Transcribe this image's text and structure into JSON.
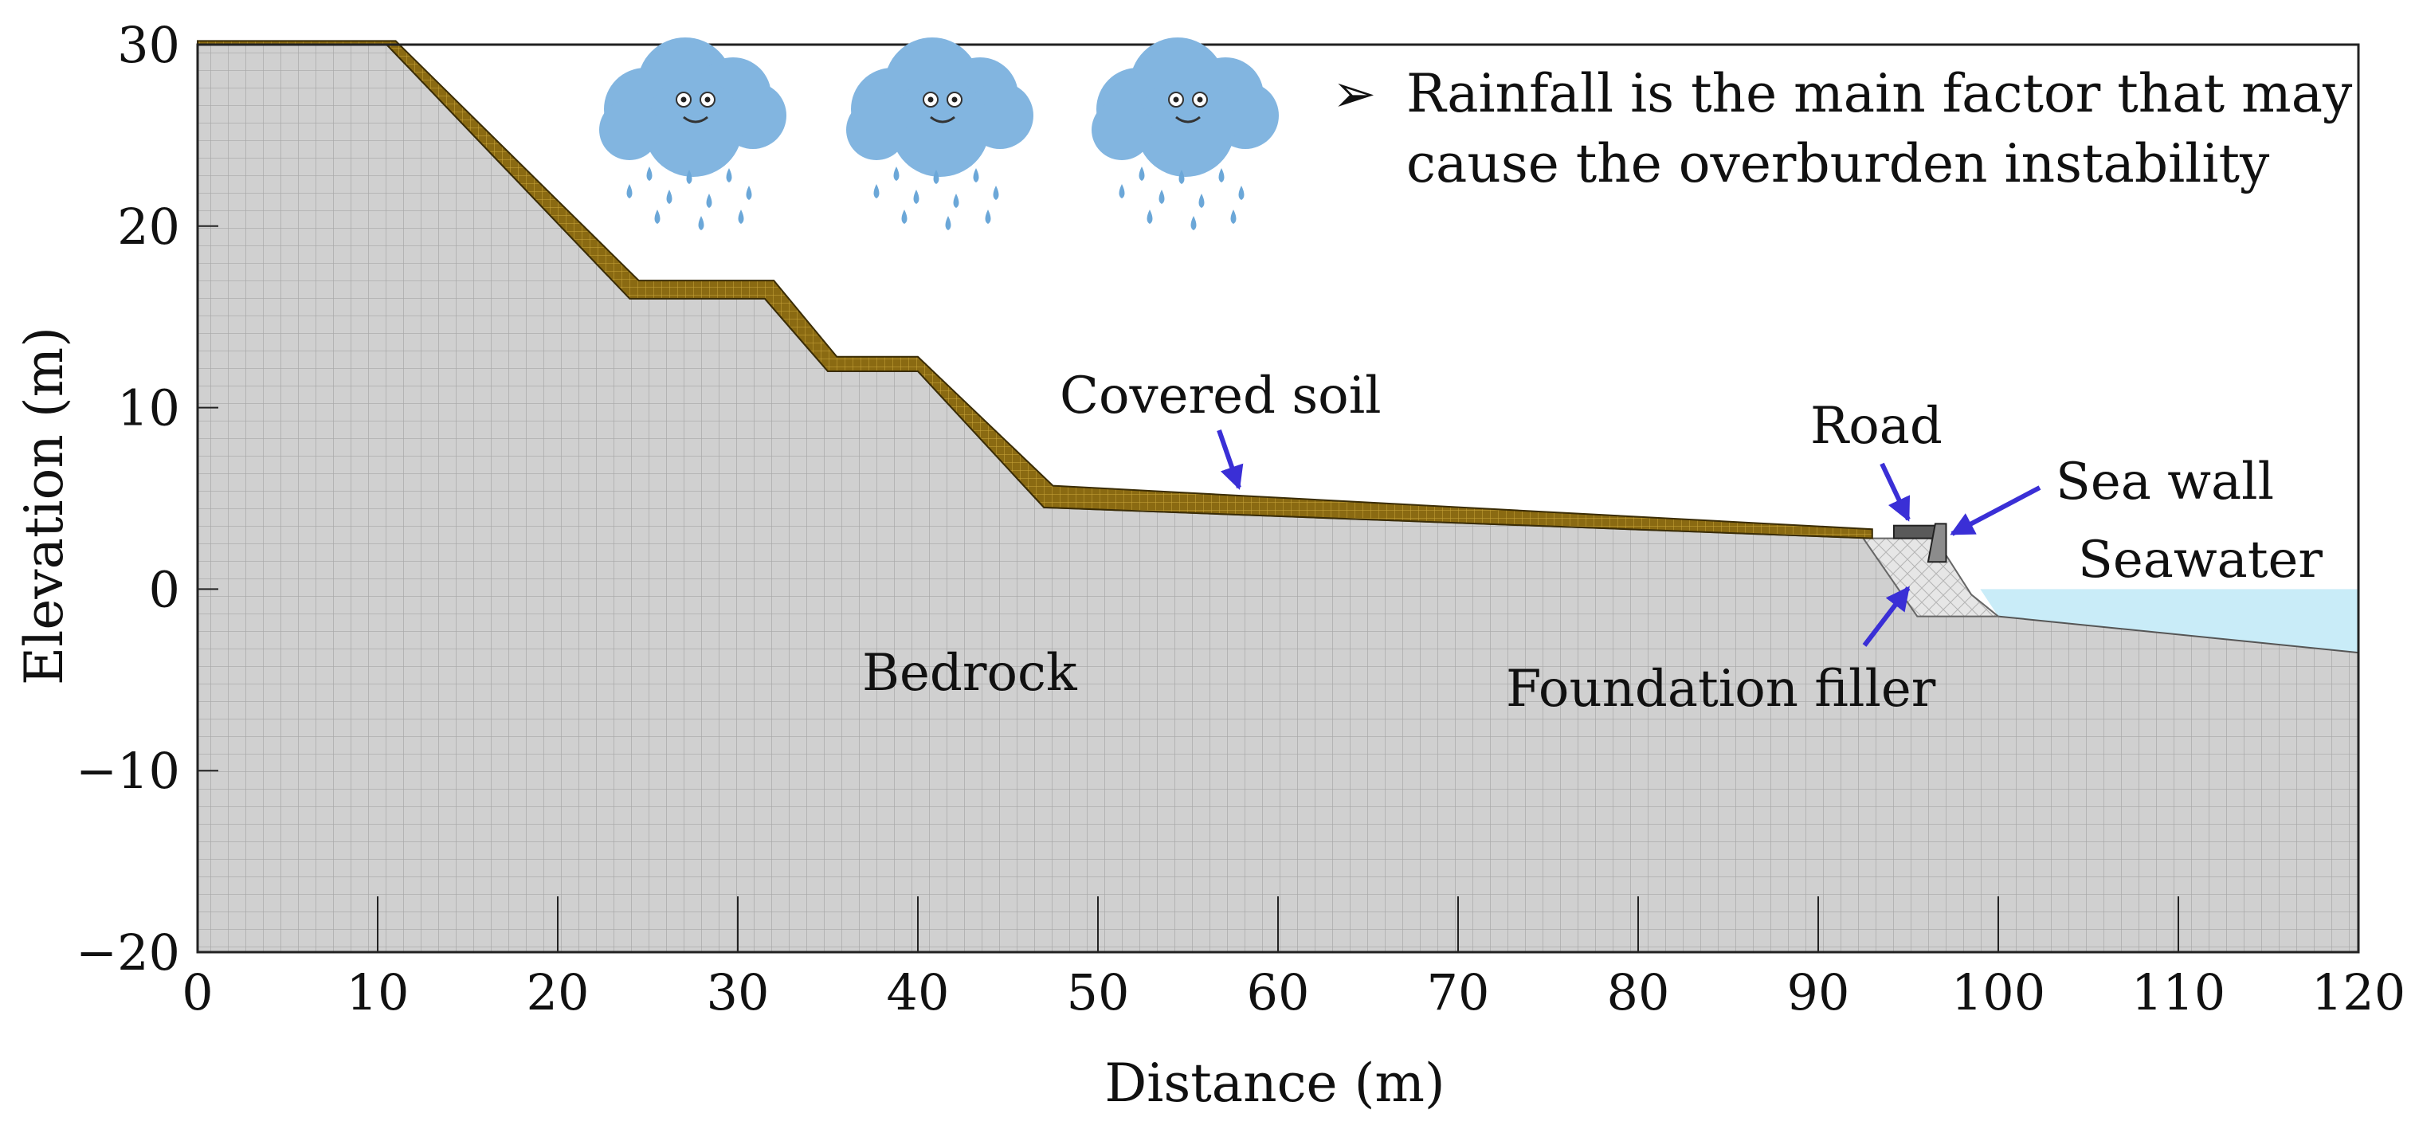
{
  "chart_data": {
    "type": "cross-section",
    "xlabel": "Distance (m)",
    "ylabel": "Elevation (m)",
    "xlim": [
      0,
      120
    ],
    "ylim": [
      -20,
      30
    ],
    "xticks": [
      0,
      10,
      20,
      30,
      40,
      50,
      60,
      70,
      80,
      90,
      100,
      110,
      120
    ],
    "yticks": [
      -20,
      -10,
      0,
      10,
      20,
      30
    ],
    "bedrock_surface": [
      [
        0,
        30
      ],
      [
        10.5,
        30
      ],
      [
        24,
        16
      ],
      [
        31.5,
        16
      ],
      [
        35,
        12
      ],
      [
        40,
        12
      ],
      [
        47,
        4.5
      ],
      [
        93,
        2.8
      ],
      [
        100,
        -1.5
      ],
      [
        120,
        -3.5
      ]
    ],
    "covered_soil_top": [
      [
        0,
        30.2
      ],
      [
        11,
        30.2
      ],
      [
        24.5,
        17
      ],
      [
        32,
        17
      ],
      [
        35.5,
        12.8
      ],
      [
        40,
        12.8
      ],
      [
        47.5,
        5.7
      ],
      [
        93,
        3.3
      ]
    ],
    "foundation_filler": [
      [
        92.5,
        2.8
      ],
      [
        96.5,
        2.8
      ],
      [
        98.5,
        -0.3
      ],
      [
        100,
        -1.5
      ],
      [
        95.5,
        -1.5
      ]
    ],
    "seawater": {
      "surface_level": 0,
      "x_start": 99,
      "x_end": 120
    },
    "seawall": {
      "x": 96.5,
      "top": 3.6,
      "bottom": 1.5
    },
    "road": {
      "x_start": 94.2,
      "x_end": 96.5,
      "elevation": 3.3
    },
    "annotations": [
      {
        "text": "Covered soil",
        "target": "covered soil layer"
      },
      {
        "text": "Road",
        "target": "road"
      },
      {
        "text": "Sea wall",
        "target": "sea wall"
      },
      {
        "text": "Seawater",
        "target": "seawater"
      },
      {
        "text": "Bedrock",
        "target": "bedrock"
      },
      {
        "text": "Foundation filler",
        "target": "foundation filler"
      }
    ]
  },
  "note": {
    "bullet": "➢",
    "line1": "Rainfall is the main factor that may",
    "line2": "cause the overburden instability"
  },
  "clouds": [
    {
      "name": "rain-cloud-1"
    },
    {
      "name": "rain-cloud-2"
    },
    {
      "name": "rain-cloud-3"
    }
  ],
  "colors": {
    "bedrock": "#cfcfcf",
    "soil": "#8a6a12",
    "filler": "#e6e6e6",
    "seawater": "#c9ecf8",
    "arrow": "#3a2fd6",
    "cloud": "#82b5e0",
    "rain": "#6ba7d8"
  }
}
